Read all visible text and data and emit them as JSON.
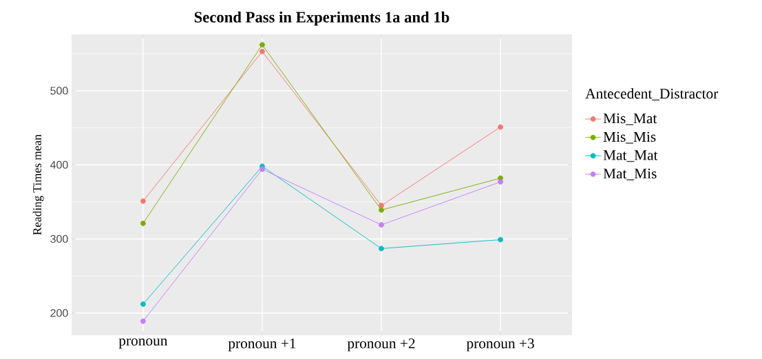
{
  "chart_data": {
    "type": "line",
    "title": "Second Pass in Experiments 1a and 1b",
    "ylabel": "Reading Times mean",
    "legend_title": "Antecedent_Distractor",
    "categories": [
      "pronoun",
      "pronoun +1",
      "pronoun +2",
      "pronoun +3"
    ],
    "series": [
      {
        "name": "Mis_Mat",
        "color": "#f8766d",
        "values": [
          351,
          553,
          345,
          451
        ]
      },
      {
        "name": "Mis_Mis",
        "color": "#7cae00",
        "values": [
          321,
          562,
          339,
          382
        ]
      },
      {
        "name": "Mat_Mat",
        "color": "#00bfc4",
        "values": [
          212,
          398,
          287,
          299
        ]
      },
      {
        "name": "Mat_Mis",
        "color": "#c77cff",
        "values": [
          189,
          394,
          319,
          377
        ]
      }
    ],
    "ylim": [
      170,
      576
    ],
    "yticks": [
      200,
      300,
      400,
      500
    ],
    "grid": true,
    "legend": "right",
    "marker": "circle",
    "line_style": "solid"
  }
}
